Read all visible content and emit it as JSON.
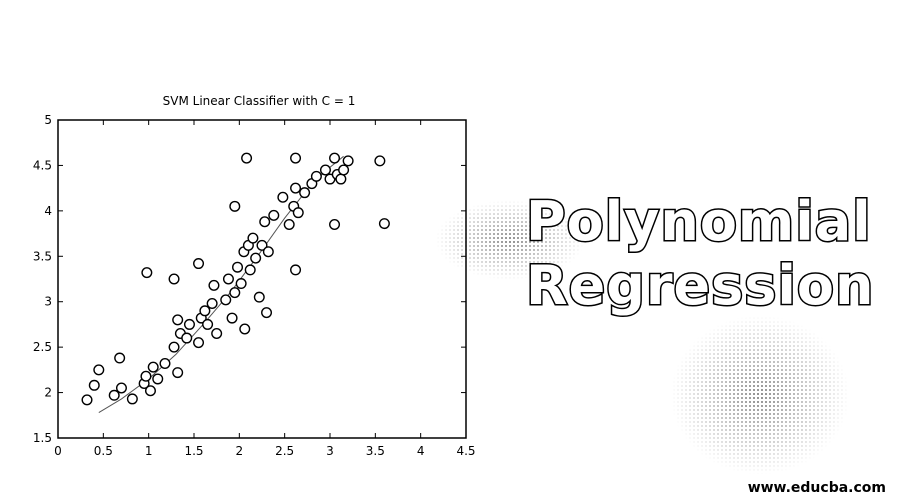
{
  "headline": {
    "line1": "Polynomial",
    "line2": "Regression"
  },
  "watermark": "www.educba.com",
  "chart_data": {
    "type": "scatter",
    "title": "SVM Linear Classifier with C = 1",
    "xlabel": "",
    "ylabel": "",
    "xlim": [
      0,
      4.5
    ],
    "ylim": [
      1.5,
      5
    ],
    "xticks": [
      0,
      0.5,
      1,
      1.5,
      2,
      2.5,
      3,
      3.5,
      4,
      4.5
    ],
    "xtick_labels": [
      "0",
      "0.5",
      "1",
      "1.5",
      "2",
      "2.5",
      "3",
      "3.5",
      "4",
      "4.5"
    ],
    "yticks": [
      1.5,
      2,
      2.5,
      3,
      3.5,
      4,
      4.5,
      5
    ],
    "ytick_labels": [
      "1.5",
      "2",
      "2.5",
      "3",
      "3.5",
      "4",
      "4.5",
      "5"
    ],
    "grid": false,
    "colors": {
      "marker": "#000000",
      "curve": "#555555",
      "axis": "#000000"
    },
    "series": [
      {
        "points": [
          [
            0.32,
            1.92
          ],
          [
            0.4,
            2.08
          ],
          [
            0.45,
            2.25
          ],
          [
            0.62,
            1.97
          ],
          [
            0.7,
            2.05
          ],
          [
            0.68,
            2.38
          ],
          [
            0.82,
            1.93
          ],
          [
            0.95,
            2.1
          ],
          [
            0.97,
            2.18
          ],
          [
            1.02,
            2.02
          ],
          [
            1.05,
            2.28
          ],
          [
            1.1,
            2.15
          ],
          [
            1.18,
            2.32
          ],
          [
            1.28,
            2.5
          ],
          [
            1.32,
            2.22
          ],
          [
            1.35,
            2.65
          ],
          [
            1.32,
            2.8
          ],
          [
            1.42,
            2.6
          ],
          [
            1.45,
            2.75
          ],
          [
            1.55,
            2.55
          ],
          [
            1.58,
            2.82
          ],
          [
            1.62,
            2.9
          ],
          [
            1.65,
            2.75
          ],
          [
            1.7,
            2.98
          ],
          [
            1.72,
            3.18
          ],
          [
            1.75,
            2.65
          ],
          [
            1.85,
            3.02
          ],
          [
            1.88,
            3.25
          ],
          [
            1.92,
            2.82
          ],
          [
            1.95,
            3.1
          ],
          [
            1.98,
            3.38
          ],
          [
            2.02,
            3.2
          ],
          [
            2.05,
            3.55
          ],
          [
            2.06,
            2.7
          ],
          [
            2.1,
            3.62
          ],
          [
            2.12,
            3.35
          ],
          [
            2.15,
            3.7
          ],
          [
            2.18,
            3.48
          ],
          [
            2.22,
            3.05
          ],
          [
            2.25,
            3.62
          ],
          [
            2.28,
            3.88
          ],
          [
            2.3,
            2.88
          ],
          [
            2.32,
            3.55
          ],
          [
            2.38,
            3.95
          ],
          [
            2.48,
            4.15
          ],
          [
            2.55,
            3.85
          ],
          [
            2.6,
            4.05
          ],
          [
            2.62,
            4.25
          ],
          [
            2.65,
            3.98
          ],
          [
            2.72,
            4.2
          ],
          [
            2.8,
            4.3
          ],
          [
            2.85,
            4.38
          ],
          [
            2.95,
            4.45
          ],
          [
            3.0,
            4.35
          ],
          [
            3.05,
            4.58
          ],
          [
            3.08,
            4.4
          ],
          [
            3.12,
            4.35
          ],
          [
            3.15,
            4.45
          ],
          [
            3.2,
            4.55
          ],
          [
            0.98,
            3.32
          ],
          [
            1.28,
            3.25
          ],
          [
            1.55,
            3.42
          ],
          [
            1.95,
            4.05
          ],
          [
            2.62,
            3.35
          ],
          [
            2.08,
            4.58
          ],
          [
            2.62,
            4.58
          ],
          [
            3.05,
            3.85
          ],
          [
            3.55,
            4.55
          ],
          [
            3.6,
            3.86
          ]
        ]
      }
    ],
    "fit_curve": {
      "type": "polynomial",
      "x": [
        0.45,
        0.7,
        1.0,
        1.3,
        1.6,
        1.9,
        2.2,
        2.5,
        2.8,
        3.0,
        3.15
      ],
      "y": [
        1.78,
        1.93,
        2.15,
        2.42,
        2.75,
        3.1,
        3.5,
        3.92,
        4.3,
        4.48,
        4.6
      ]
    }
  }
}
